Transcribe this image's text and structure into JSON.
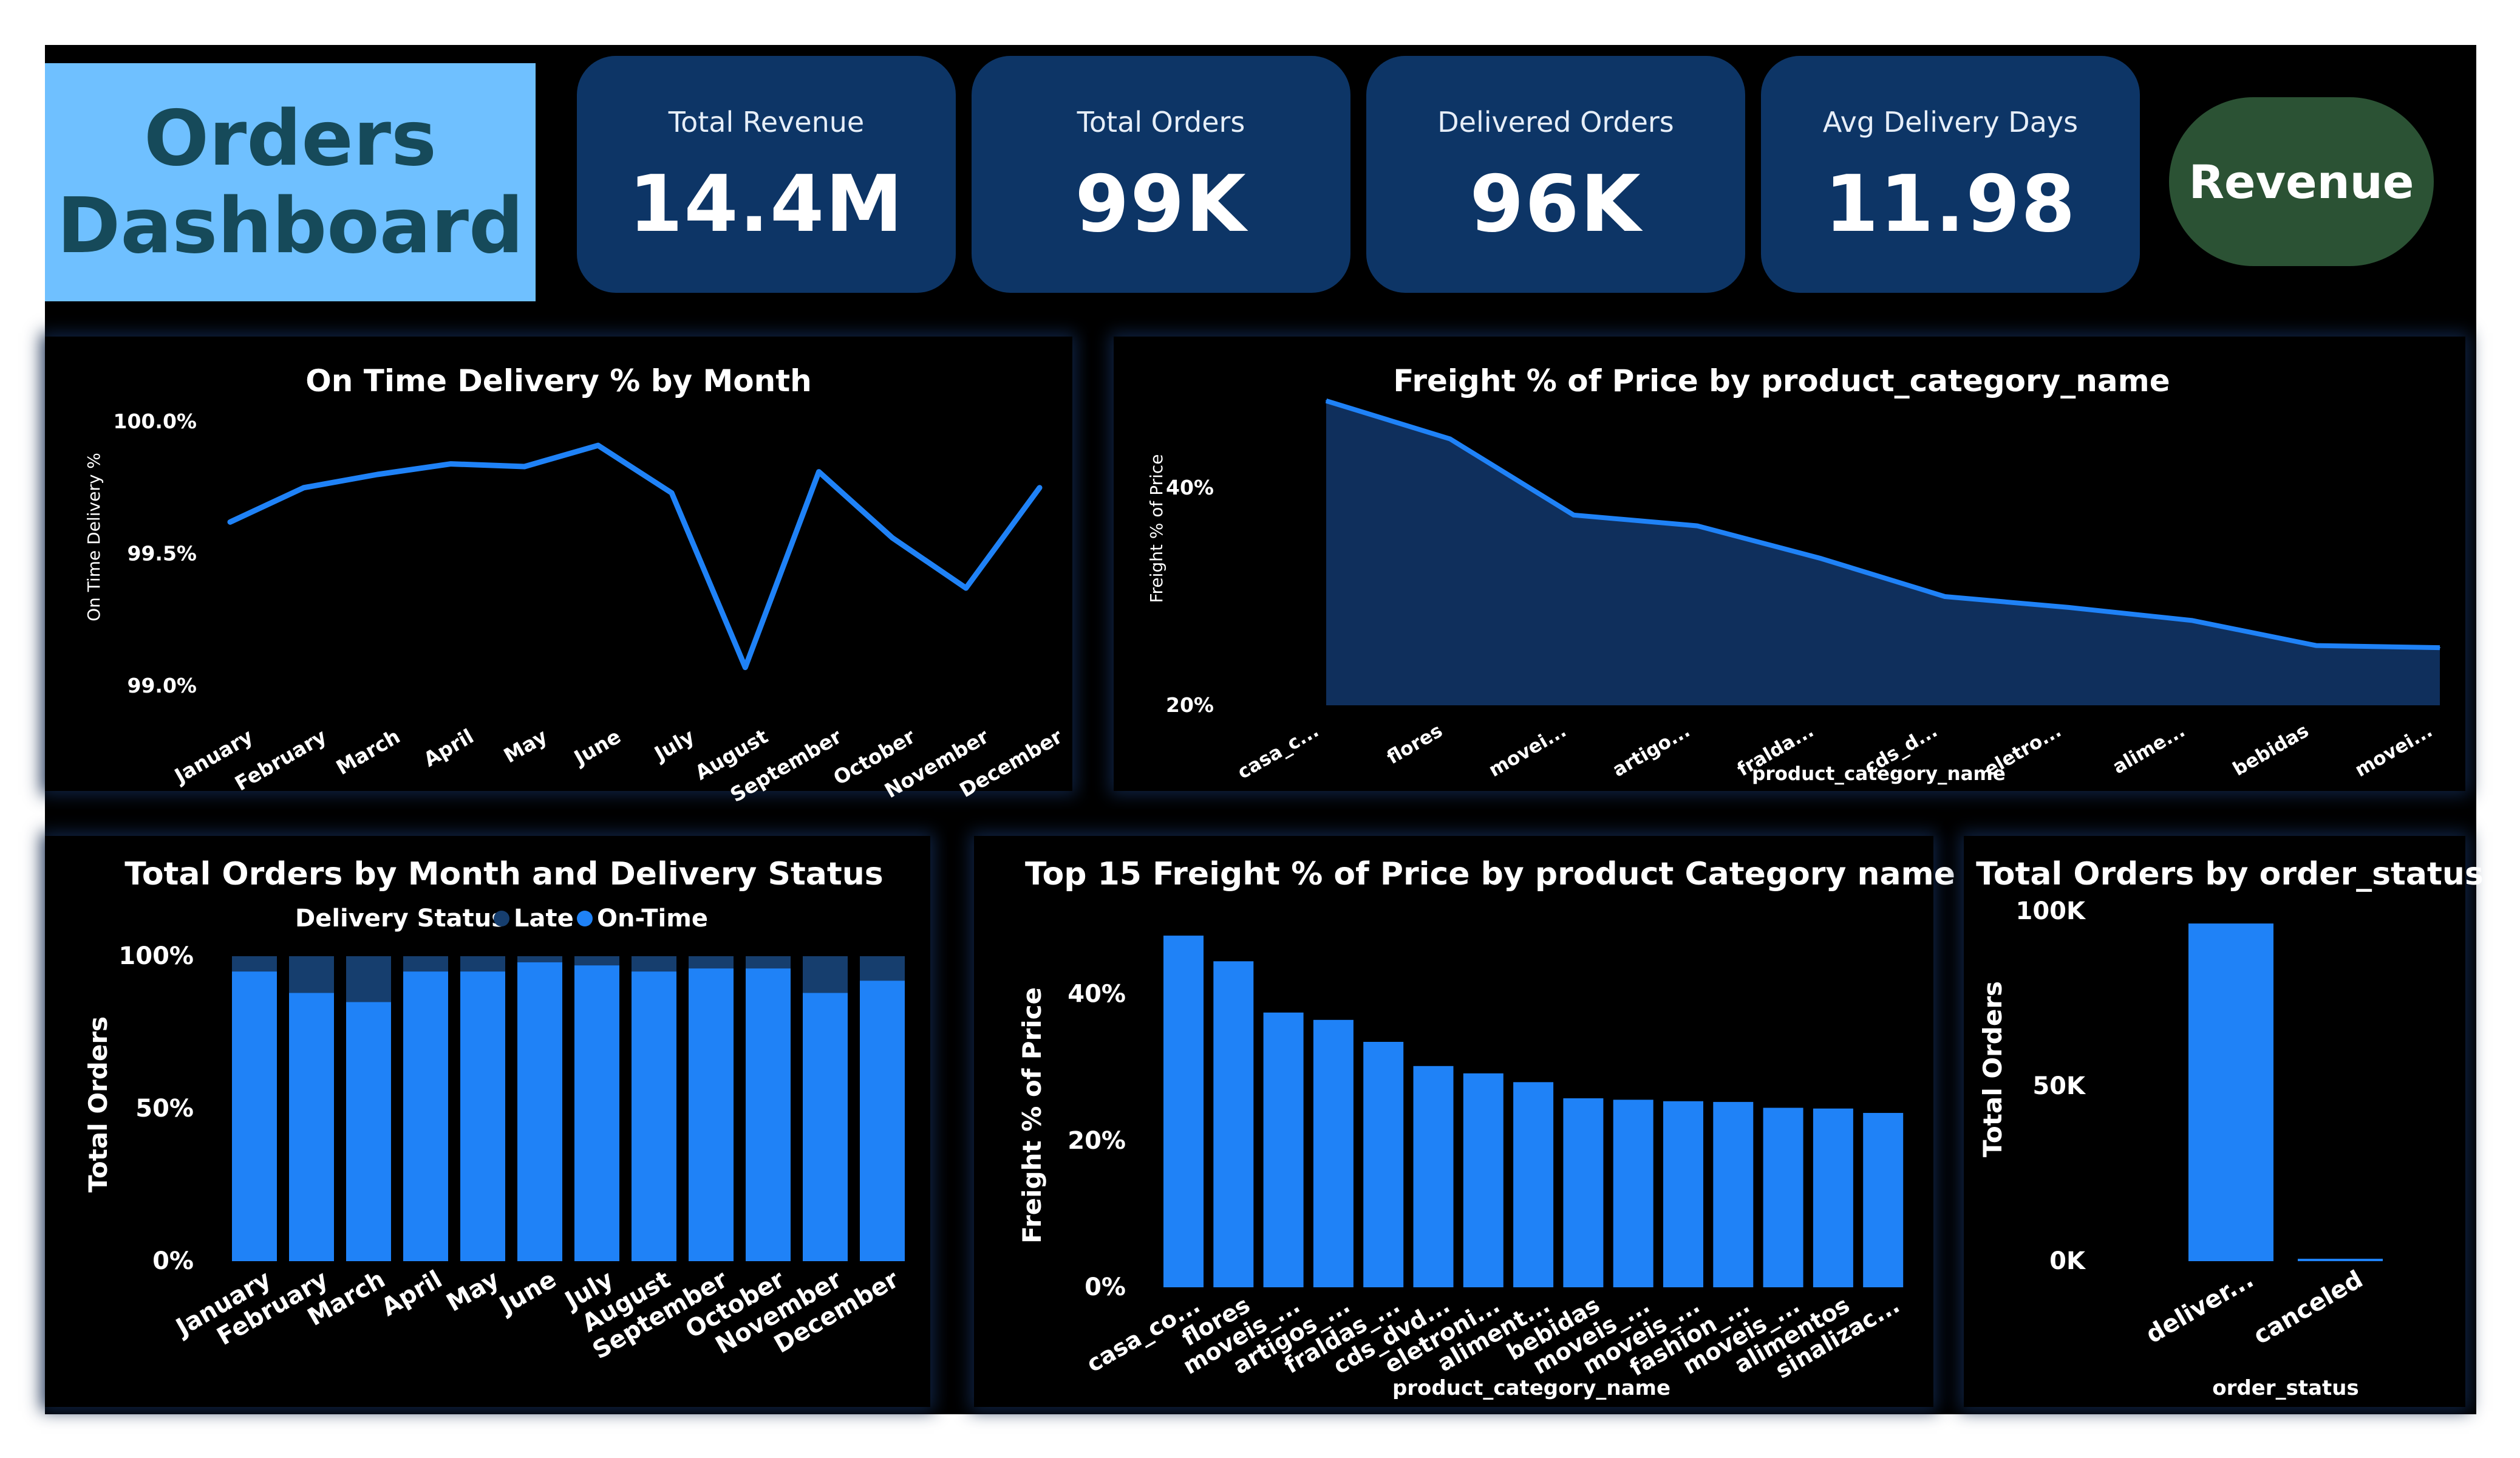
{
  "header": {
    "title": "Orders\nDashboard",
    "revenue_button": "Revenue"
  },
  "kpis": [
    {
      "label": "Total Revenue",
      "value": "14.4M"
    },
    {
      "label": "Total Orders",
      "value": "99K"
    },
    {
      "label": "Delivered Orders",
      "value": "96K"
    },
    {
      "label": "Avg Delivery Days",
      "value": "11.98"
    }
  ],
  "colors": {
    "canvas": "#000000",
    "title_box": "#6fc0ff",
    "kpi_card": "#0d3566",
    "revenue_button": "#2b5234",
    "series_blue": "#1f82f7",
    "late_navy": "#163e6e",
    "area_fill": "#0f2f5c"
  },
  "chart_data": [
    {
      "id": "ontime",
      "type": "line",
      "title": "On Time Delivery % by Month",
      "xlabel": "",
      "ylabel": "On Time Delivery %",
      "categories": [
        "January",
        "February",
        "March",
        "April",
        "May",
        "June",
        "July",
        "August",
        "September",
        "October",
        "November",
        "December"
      ],
      "values": [
        99.62,
        99.75,
        99.8,
        99.84,
        99.83,
        99.91,
        99.73,
        99.07,
        99.81,
        99.56,
        99.37,
        99.75
      ],
      "ylim": [
        99.0,
        100.0
      ],
      "yticks": [
        99.0,
        99.5,
        100.0
      ],
      "ytick_labels": [
        "99.0%",
        "99.5%",
        "100.0%"
      ],
      "grid": false
    },
    {
      "id": "freight_area",
      "type": "area",
      "title": "Freight % of Price by product_category_name",
      "xlabel": "product_category_name",
      "ylabel": "Freight % of Price",
      "categories": [
        "casa_c...",
        "flores",
        "movei...",
        "artigo...",
        "fralda...",
        "cds_d...",
        "eletro...",
        "alime...",
        "bebidas",
        "movei..."
      ],
      "values": [
        48.0,
        44.5,
        37.5,
        36.5,
        33.5,
        30.0,
        29.0,
        27.8,
        25.5,
        25.3
      ],
      "ylim": [
        20,
        50
      ],
      "yticks": [
        20,
        40
      ],
      "ytick_labels": [
        "20%",
        "40%"
      ],
      "grid": false
    },
    {
      "id": "orders_status_month",
      "type": "bar",
      "stacked": "percent",
      "title": "Total Orders by Month and Delivery Status",
      "xlabel": "",
      "ylabel": "Total Orders",
      "legend_title": "Delivery Status",
      "legend_position": "top",
      "categories": [
        "January",
        "February",
        "March",
        "April",
        "May",
        "June",
        "July",
        "August",
        "September",
        "October",
        "November",
        "December"
      ],
      "series": [
        {
          "name": "On-Time",
          "values": [
            95,
            88,
            85,
            95,
            95,
            98,
            97,
            95,
            96,
            96,
            88,
            92
          ]
        },
        {
          "name": "Late",
          "values": [
            5,
            12,
            15,
            5,
            5,
            2,
            3,
            5,
            4,
            4,
            12,
            8
          ]
        }
      ],
      "ylim": [
        0,
        100
      ],
      "yticks": [
        0,
        50,
        100
      ],
      "ytick_labels": [
        "0%",
        "50%",
        "100%"
      ],
      "grid": false
    },
    {
      "id": "top15_freight",
      "type": "bar",
      "title": "Top 15 Freight % of Price by product Category name",
      "xlabel": "product_category_name",
      "ylabel": "Freight % of Price",
      "categories": [
        "casa_co...",
        "flores",
        "moveis_...",
        "artigos_...",
        "fraldas_...",
        "cds_dvd...",
        "eletroni...",
        "aliment...",
        "bebidas",
        "moveis_...",
        "moveis_...",
        "fashion_...",
        "moveis_...",
        "alimentos",
        "sinalizac..."
      ],
      "values": [
        48.0,
        44.5,
        37.5,
        36.5,
        33.5,
        30.2,
        29.2,
        28.0,
        25.8,
        25.6,
        25.4,
        25.3,
        24.5,
        24.4,
        23.8
      ],
      "ylim": [
        0,
        50
      ],
      "yticks": [
        0,
        20,
        40
      ],
      "ytick_labels": [
        "0%",
        "20%",
        "40%"
      ],
      "grid": false
    },
    {
      "id": "orders_by_status",
      "type": "bar",
      "title": "Total Orders by order_status",
      "xlabel": "order_status",
      "ylabel": "Total Orders",
      "categories": [
        "deliver...",
        "canceled"
      ],
      "values": [
        96500,
        625
      ],
      "ylim": [
        0,
        100000
      ],
      "yticks": [
        0,
        50000,
        100000
      ],
      "ytick_labels": [
        "0K",
        "50K",
        "100K"
      ],
      "grid": false
    }
  ]
}
